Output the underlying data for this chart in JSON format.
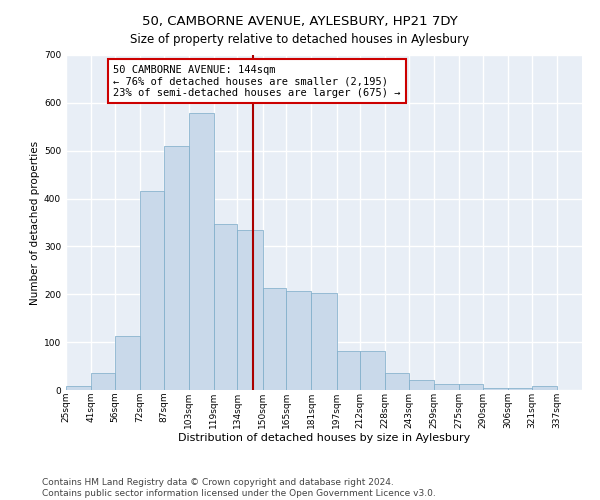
{
  "title": "50, CAMBORNE AVENUE, AYLESBURY, HP21 7DY",
  "subtitle": "Size of property relative to detached houses in Aylesbury",
  "xlabel": "Distribution of detached houses by size in Aylesbury",
  "ylabel": "Number of detached properties",
  "bar_color": "#c9d9ea",
  "bar_edge_color": "#7aaac8",
  "background_color": "#e8eef6",
  "grid_color": "#ffffff",
  "vline_x": 144,
  "vline_color": "#aa0000",
  "annotation_text": "50 CAMBORNE AVENUE: 144sqm\n← 76% of detached houses are smaller (2,195)\n23% of semi-detached houses are larger (675) →",
  "annotation_box_color": "#cc0000",
  "bin_edges": [
    25,
    41,
    56,
    72,
    87,
    103,
    119,
    134,
    150,
    165,
    181,
    197,
    212,
    228,
    243,
    259,
    275,
    290,
    306,
    321,
    337
  ],
  "bin_labels": [
    "25sqm",
    "41sqm",
    "56sqm",
    "72sqm",
    "87sqm",
    "103sqm",
    "119sqm",
    "134sqm",
    "150sqm",
    "165sqm",
    "181sqm",
    "197sqm",
    "212sqm",
    "228sqm",
    "243sqm",
    "259sqm",
    "275sqm",
    "290sqm",
    "306sqm",
    "321sqm",
    "337sqm"
  ],
  "bar_heights": [
    8,
    35,
    113,
    415,
    510,
    578,
    347,
    335,
    213,
    207,
    203,
    82,
    82,
    35,
    20,
    13,
    13,
    5,
    5,
    8
  ],
  "ylim": [
    0,
    700
  ],
  "yticks": [
    0,
    100,
    200,
    300,
    400,
    500,
    600,
    700
  ],
  "footnote": "Contains HM Land Registry data © Crown copyright and database right 2024.\nContains public sector information licensed under the Open Government Licence v3.0.",
  "title_fontsize": 9.5,
  "subtitle_fontsize": 8.5,
  "xlabel_fontsize": 8,
  "ylabel_fontsize": 7.5,
  "tick_fontsize": 6.5,
  "annotation_fontsize": 7.5,
  "footnote_fontsize": 6.5
}
